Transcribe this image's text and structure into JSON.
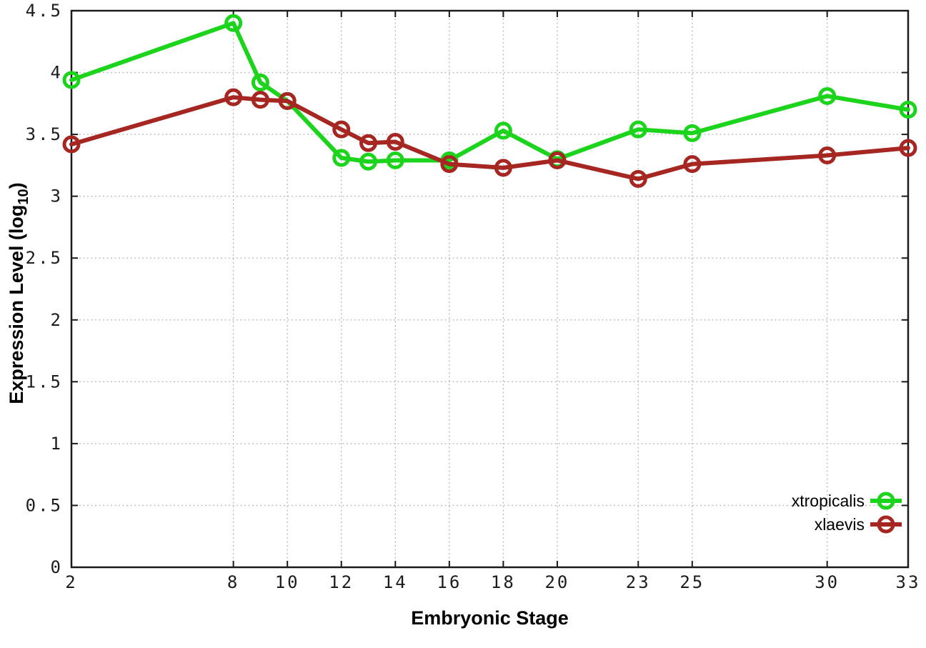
{
  "chart_data": {
    "type": "line",
    "title": "",
    "xlabel": "Embryonic Stage",
    "ylabel": "Expression Level (log10)",
    "ylabel_parts": {
      "main": "Expression Level (log",
      "sub": "10",
      "end": ")"
    },
    "xlim": [
      2,
      33
    ],
    "ylim": [
      0,
      4.5
    ],
    "xticks": [
      2,
      8,
      10,
      12,
      14,
      16,
      18,
      20,
      23,
      25,
      30,
      33
    ],
    "yticks": [
      0,
      0.5,
      1,
      1.5,
      2,
      2.5,
      3,
      3.5,
      4,
      4.5
    ],
    "ytick_labels": [
      "0",
      "0.5",
      "1",
      "1.5",
      "2",
      "2.5",
      "3",
      "3.5",
      "4",
      "4.5"
    ],
    "grid": true,
    "legend_position": "bottom-right",
    "x": [
      2,
      8,
      9,
      10,
      12,
      13,
      14,
      16,
      18,
      20,
      23,
      25,
      30,
      33
    ],
    "series": [
      {
        "name": "xtropicalis",
        "color": "#1bd41b",
        "marker": "open-circle",
        "values": [
          3.94,
          4.4,
          3.92,
          3.77,
          3.31,
          3.28,
          3.29,
          3.29,
          3.53,
          3.3,
          3.54,
          3.51,
          3.81,
          3.7
        ]
      },
      {
        "name": "xlaevis",
        "color": "#a62621",
        "marker": "open-circle",
        "values": [
          3.42,
          3.8,
          3.78,
          3.77,
          3.54,
          3.43,
          3.44,
          3.26,
          3.23,
          3.29,
          3.14,
          3.26,
          3.33,
          3.39
        ]
      }
    ],
    "colors": {
      "axis": "#1a1a1a",
      "grid": "#bbbbbb",
      "background": "#ffffff",
      "text": "#000000"
    }
  }
}
